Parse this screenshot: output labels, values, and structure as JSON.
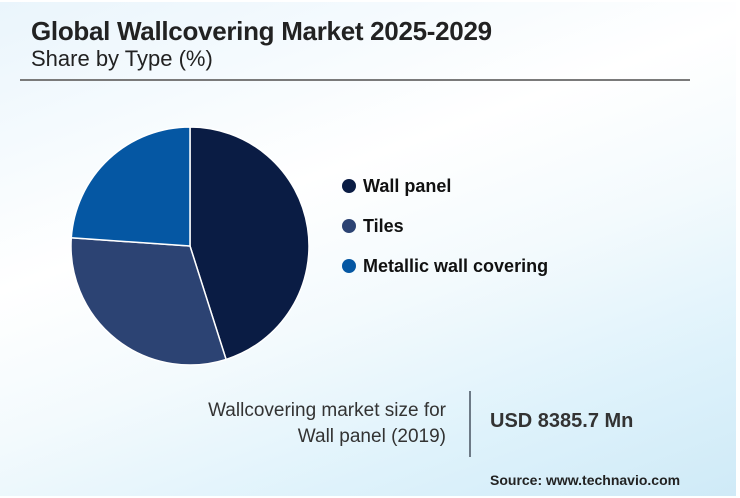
{
  "header": {
    "title": "Global Wallcovering Market 2025-2029",
    "subtitle": "Share by Type (%)"
  },
  "chart_data": {
    "type": "pie",
    "title": "Global Wallcovering Market 2025-2029",
    "subtitle": "Share by Type (%)",
    "categories": [
      "Wall panel",
      "Tiles",
      "Metallic wall covering"
    ],
    "values": [
      45.1,
      31.0,
      23.9
    ],
    "colors": [
      "#0a1c44",
      "#2c4373",
      "#0557a3"
    ],
    "start_angle_deg": 0,
    "direction": "clockwise",
    "legend_position": "right",
    "data_labels": false
  },
  "legend": {
    "items": [
      {
        "label": "Wall panel",
        "color": "#0a1c44"
      },
      {
        "label": "Tiles",
        "color": "#2c4373"
      },
      {
        "label": "Metallic wall covering",
        "color": "#0557a3"
      }
    ]
  },
  "stat": {
    "label_line1": "Wallcovering market size for",
    "label_line2": "Wall panel (2019)",
    "value": "USD 8385.7 Mn"
  },
  "footer": {
    "source": "Source: www.technavio.com"
  }
}
